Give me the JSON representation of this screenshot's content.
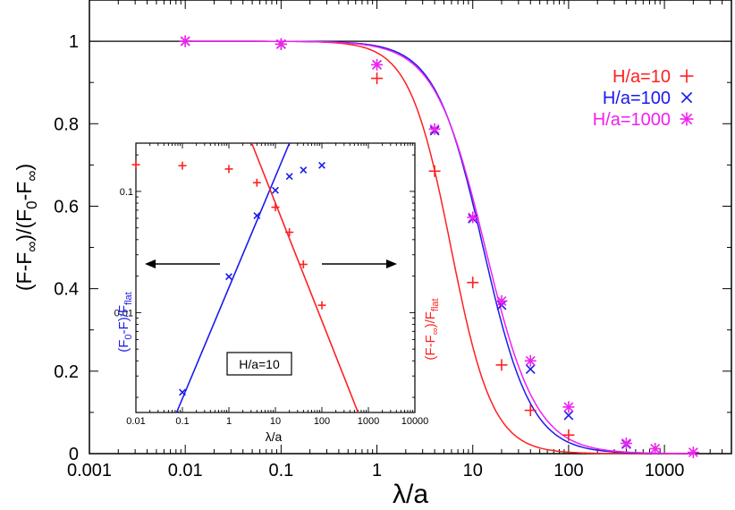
{
  "chart_data": [
    {
      "type": "line",
      "scale": {
        "x": "log",
        "y": "linear"
      },
      "xlabel": "λ/a",
      "ylabel_main": "(F-F",
      "ylabel_sub1": "∞",
      "ylabel_mid": ")/(F",
      "ylabel_sub2": "0",
      "ylabel_mid2": "-F",
      "ylabel_sub3": "∞",
      "ylabel_end": ")",
      "xlim": [
        0.001,
        5000
      ],
      "ylim": [
        0,
        1.1
      ],
      "x_ticks": [
        {
          "v": 0.001,
          "label": "0.001"
        },
        {
          "v": 0.01,
          "label": "0.01"
        },
        {
          "v": 0.1,
          "label": "0.1"
        },
        {
          "v": 1,
          "label": "1"
        },
        {
          "v": 10,
          "label": "10"
        },
        {
          "v": 100,
          "label": "100"
        },
        {
          "v": 1000,
          "label": "1000"
        }
      ],
      "y_ticks": [
        {
          "v": 0,
          "label": "0"
        },
        {
          "v": 0.2,
          "label": "0.2"
        },
        {
          "v": 0.4,
          "label": "0.4"
        },
        {
          "v": 0.6,
          "label": "0.6"
        },
        {
          "v": 0.8,
          "label": "0.8"
        },
        {
          "v": 1,
          "label": "1"
        }
      ],
      "reference_line": 1,
      "series": [
        {
          "name": "H/a=10",
          "marker": "plus",
          "color": "#ff2020",
          "points": [
            [
              0.01,
              1.0
            ],
            [
              0.1,
              0.993
            ],
            [
              1,
              0.91
            ],
            [
              4,
              0.685
            ],
            [
              10,
              0.415
            ],
            [
              20,
              0.215
            ],
            [
              40,
              0.105
            ],
            [
              100,
              0.045
            ]
          ],
          "curve": {
            "x0": 5.92,
            "n": 2.0
          }
        },
        {
          "name": "H/a=100",
          "marker": "x",
          "color": "#1a1aee",
          "points": [
            [
              0.01,
              1.0
            ],
            [
              0.1,
              0.993
            ],
            [
              1,
              0.943
            ],
            [
              4,
              0.783
            ],
            [
              10,
              0.57
            ],
            [
              20,
              0.36
            ],
            [
              40,
              0.205
            ],
            [
              100,
              0.093
            ],
            [
              400,
              0.023
            ]
          ],
          "curve": {
            "x0": 12.84,
            "n": 1.74
          }
        },
        {
          "name": "H/a=1000",
          "marker": "star",
          "color": "#ee22ee",
          "points": [
            [
              0.01,
              1.0
            ],
            [
              0.1,
              0.993
            ],
            [
              1,
              0.943
            ],
            [
              4,
              0.787
            ],
            [
              10,
              0.573
            ],
            [
              20,
              0.37
            ],
            [
              40,
              0.225
            ],
            [
              100,
              0.113
            ],
            [
              400,
              0.025
            ],
            [
              800,
              0.012
            ],
            [
              2000,
              0.003
            ]
          ],
          "curve": {
            "x0": 13.48,
            "n": 1.64
          }
        }
      ]
    },
    {
      "type": "line",
      "scale": {
        "x": "log",
        "y": "log"
      },
      "xlabel": "λ/a",
      "xlim": [
        0.01,
        10000
      ],
      "ylim": [
        0.0015,
        0.25
      ],
      "x_ticks": [
        {
          "v": 0.01,
          "label": "0.01"
        },
        {
          "v": 0.1,
          "label": "0.1"
        },
        {
          "v": 1,
          "label": "1"
        },
        {
          "v": 10,
          "label": "10"
        },
        {
          "v": 100,
          "label": "100"
        },
        {
          "v": 1000,
          "label": "1000"
        },
        {
          "v": 10000,
          "label": "10000"
        }
      ],
      "y_ticks": [
        {
          "v": 0.01,
          "label": "0.01"
        },
        {
          "v": 0.1,
          "label": "0.1"
        }
      ],
      "annotation": "H/a=10",
      "left_label": "(F",
      "left_label_sub1": "0",
      "left_label_mid": "-F)/F",
      "left_label_sub2": "flat",
      "right_label": "(F-F",
      "right_label_sub1": "∞",
      "right_label_mid": ")/F",
      "right_label_sub2": "flat",
      "series": [
        {
          "name": "(F0-F)/Fflat",
          "marker": "x",
          "color": "#1a1aee",
          "points": [
            [
              0.1,
              0.0022
            ],
            [
              1,
              0.0198
            ],
            [
              4,
              0.063
            ],
            [
              10,
              0.102
            ],
            [
              20,
              0.133
            ],
            [
              40,
              0.15
            ],
            [
              100,
              0.164
            ]
          ],
          "fit": {
            "x1": 0.075,
            "y1": 0.0015,
            "x2": 20,
            "y2": 0.25
          }
        },
        {
          "name": "(F-F∞)/Fflat",
          "marker": "plus",
          "color": "#ff2020",
          "points": [
            [
              0.01,
              0.166
            ],
            [
              0.1,
              0.163
            ],
            [
              1,
              0.153
            ],
            [
              4,
              0.118
            ],
            [
              10,
              0.074
            ],
            [
              20,
              0.046
            ],
            [
              40,
              0.025
            ],
            [
              100,
              0.0115
            ]
          ],
          "fit": {
            "x1": 3.1,
            "y1": 0.25,
            "x2": 600,
            "y2": 0.0015
          }
        }
      ]
    }
  ]
}
